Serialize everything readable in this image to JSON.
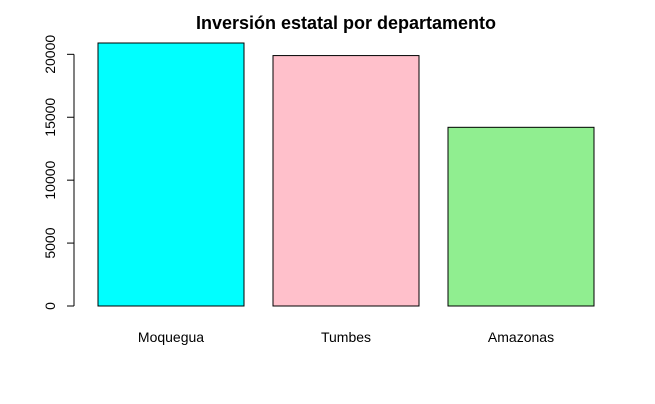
{
  "chart_data": {
    "type": "bar",
    "title": "Inversión estatal por departamento",
    "xlabel": "",
    "ylabel": "",
    "categories": [
      "Moquegua",
      "Tumbes",
      "Amazonas"
    ],
    "values": [
      20900,
      19900,
      14200
    ],
    "colors": [
      "#00ffff",
      "#ffc0cb",
      "#90ee90"
    ],
    "ylim": [
      0,
      21500
    ],
    "yticks": [
      0,
      5000,
      10000,
      15000,
      20000
    ],
    "grid": false,
    "legend": "none"
  }
}
